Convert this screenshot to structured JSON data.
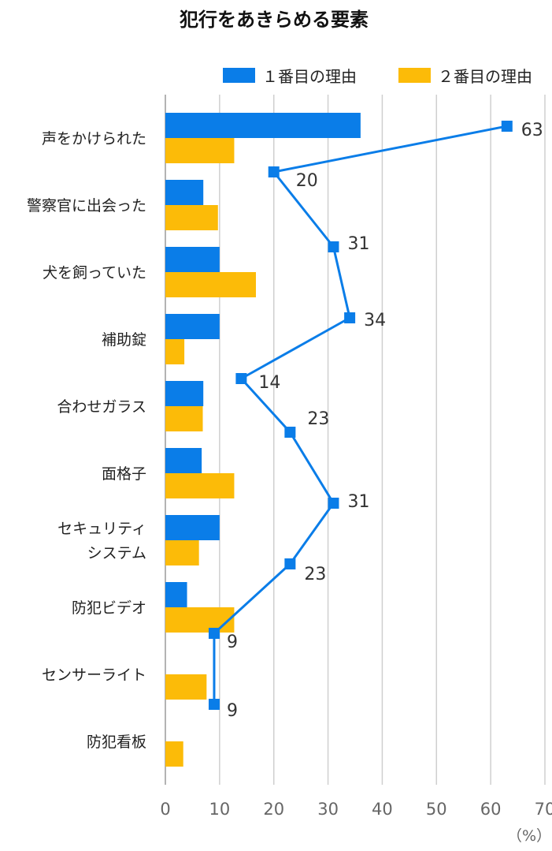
{
  "chart_data": {
    "type": "bar",
    "orientation": "horizontal",
    "title": "犯行をあきらめる要素",
    "unit": "（%）",
    "xlim": [
      0,
      70
    ],
    "xticks": [
      0,
      10,
      20,
      30,
      40,
      50,
      60,
      70
    ],
    "grid": true,
    "legend_position": "top-right",
    "categories": [
      [
        "声をかけられた"
      ],
      [
        "警察官に出会った"
      ],
      [
        "犬を飼っていた"
      ],
      [
        "補助錠"
      ],
      [
        "合わせガラス"
      ],
      [
        "面格子"
      ],
      [
        "セキュリティ",
        "システム"
      ],
      [
        "防犯ビデオ"
      ],
      [
        "センサーライト"
      ],
      [
        "防犯看板"
      ]
    ],
    "series": [
      {
        "name": "１番目の理由",
        "type": "bar",
        "color": "#0a7de8",
        "values": [
          36,
          7,
          10,
          10,
          7,
          6.7,
          10,
          4,
          0,
          0
        ]
      },
      {
        "name": "２番目の理由",
        "type": "bar",
        "color": "#fcbb08",
        "values": [
          12.7,
          9.7,
          16.7,
          3.5,
          6.9,
          12.7,
          6.2,
          12.7,
          7.6,
          3.3
        ]
      },
      {
        "type": "line",
        "color": "#0a7de8",
        "values": [
          63,
          20,
          31,
          34,
          14,
          23,
          31,
          23,
          9,
          9
        ]
      }
    ]
  }
}
